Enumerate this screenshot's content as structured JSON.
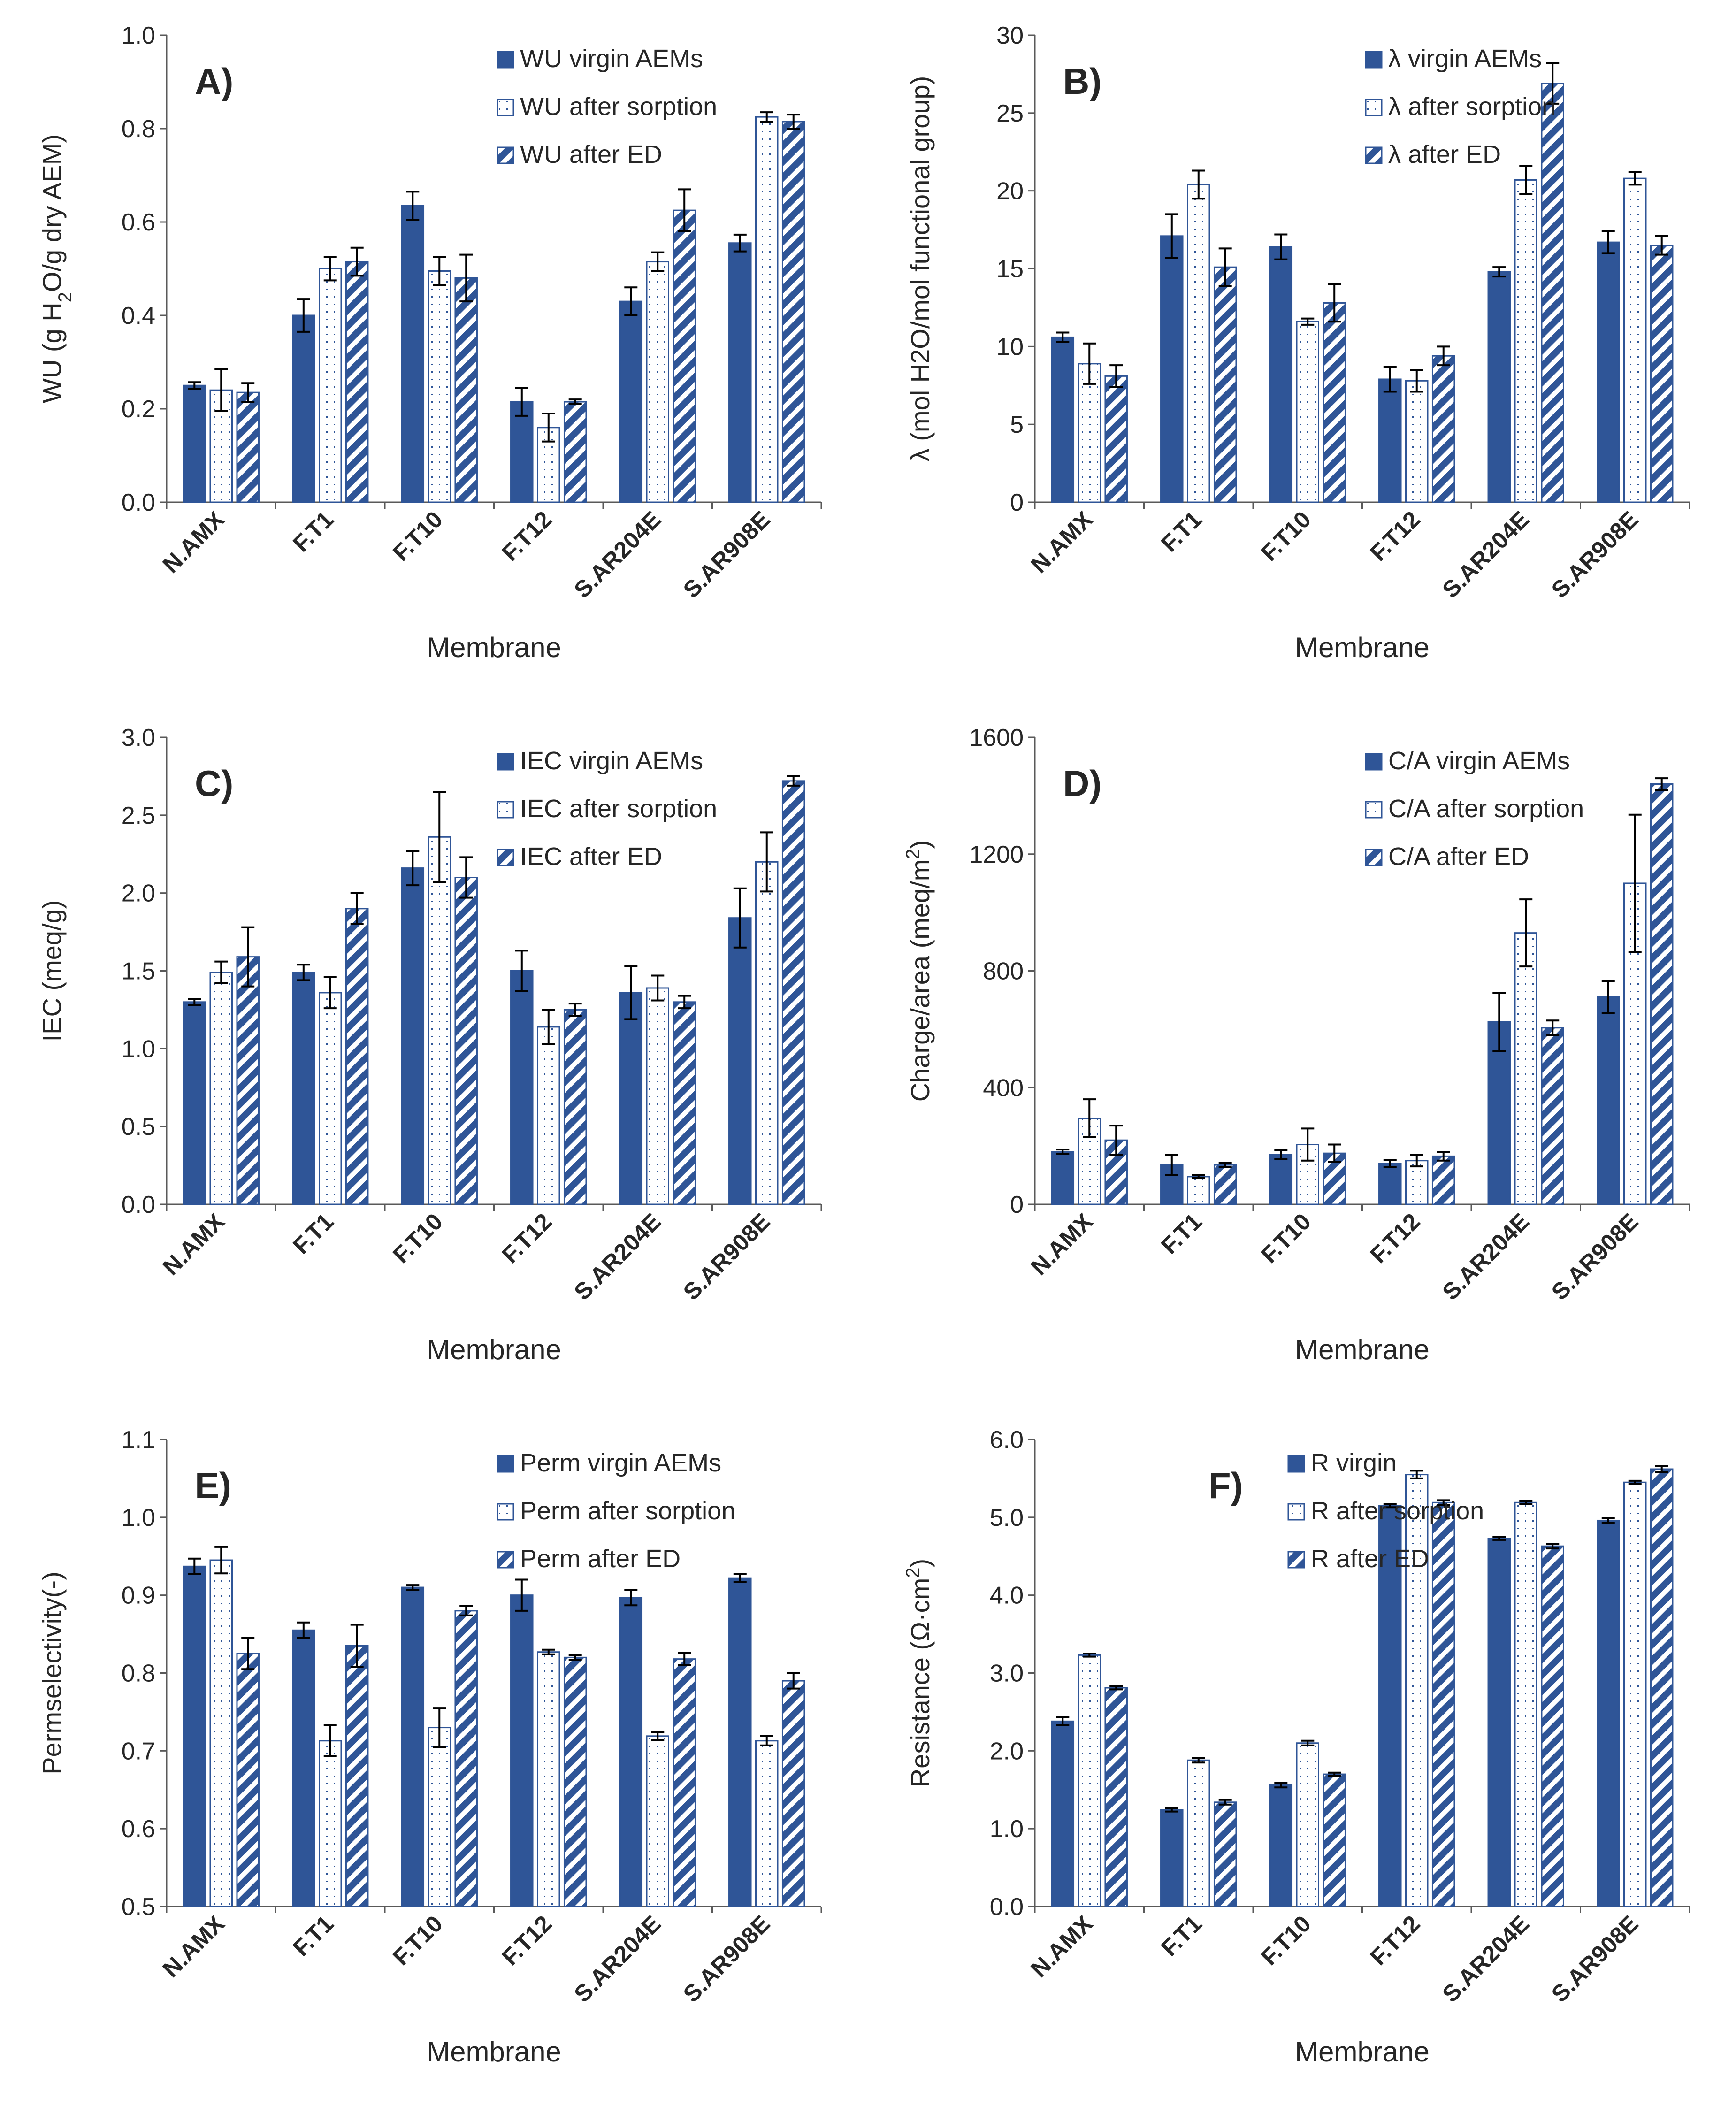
{
  "colors": {
    "bar_fill": "#2F5597",
    "bar_stroke": "#2F5597",
    "axis": "#595959",
    "error_bar": "#000000"
  },
  "chart_data": [
    {
      "type": "bar",
      "letter": "A)",
      "categories": [
        "N.AMX",
        "F.T1",
        "F.T10",
        "F.T12",
        "S.AR204E",
        "S.AR908E"
      ],
      "xlabel": "Membrane",
      "ylabel_parts": [
        "WU (g H",
        "2",
        "O/g dry AEM)"
      ],
      "ylim": [
        0,
        1.0
      ],
      "yticks": [
        0,
        0.2,
        0.4,
        0.6,
        0.8,
        1.0
      ],
      "tick_decimals": 1,
      "legend_position": "top-right",
      "series": [
        {
          "name": "WU virgin AEMs",
          "pattern": "solid",
          "values": [
            0.25,
            0.4,
            0.635,
            0.215,
            0.43,
            0.555
          ],
          "errors": [
            0.007,
            0.035,
            0.03,
            0.03,
            0.03,
            0.018
          ]
        },
        {
          "name": "WU after sorption",
          "pattern": "dots",
          "values": [
            0.24,
            0.5,
            0.495,
            0.16,
            0.515,
            0.825
          ],
          "errors": [
            0.045,
            0.025,
            0.03,
            0.03,
            0.02,
            0.01
          ]
        },
        {
          "name": "WU after ED",
          "pattern": "diag",
          "values": [
            0.235,
            0.515,
            0.48,
            0.215,
            0.625,
            0.815
          ],
          "errors": [
            0.02,
            0.03,
            0.05,
            0.005,
            0.045,
            0.015
          ]
        }
      ]
    },
    {
      "type": "bar",
      "letter": "B)",
      "categories": [
        "N.AMX",
        "F.T1",
        "F.T10",
        "F.T12",
        "S.AR204E",
        "S.AR908E"
      ],
      "xlabel": "Membrane",
      "ylabel_parts": [
        "λ (mol H2O/mol functional group)"
      ],
      "ylim": [
        0,
        30
      ],
      "yticks": [
        0,
        5,
        10,
        15,
        20,
        25,
        30
      ],
      "tick_decimals": 0,
      "legend_position": "top-right",
      "series": [
        {
          "name": "λ virgin AEMs",
          "pattern": "solid",
          "values": [
            10.6,
            17.1,
            16.4,
            7.9,
            14.8,
            16.7
          ],
          "errors": [
            0.3,
            1.4,
            0.8,
            0.8,
            0.3,
            0.7
          ]
        },
        {
          "name": "λ after sorption",
          "pattern": "dots",
          "values": [
            8.9,
            20.4,
            11.6,
            7.8,
            20.7,
            20.8
          ],
          "errors": [
            1.3,
            0.9,
            0.2,
            0.7,
            0.9,
            0.4
          ]
        },
        {
          "name": "λ after ED",
          "pattern": "diag",
          "values": [
            8.1,
            15.1,
            12.8,
            9.4,
            26.9,
            16.5
          ],
          "errors": [
            0.7,
            1.2,
            1.2,
            0.6,
            1.3,
            0.6
          ]
        }
      ]
    },
    {
      "type": "bar",
      "letter": "C)",
      "categories": [
        "N.AMX",
        "F.T1",
        "F.T10",
        "F.T12",
        "S.AR204E",
        "S.AR908E"
      ],
      "xlabel": "Membrane",
      "ylabel_parts": [
        "IEC (meq/g)"
      ],
      "ylim": [
        0,
        3.0
      ],
      "yticks": [
        0,
        0.5,
        1.0,
        1.5,
        2.0,
        2.5,
        3.0
      ],
      "tick_decimals": 1,
      "legend_position": "top-right",
      "series": [
        {
          "name": "IEC virgin AEMs",
          "pattern": "solid",
          "values": [
            1.3,
            1.49,
            2.16,
            1.5,
            1.36,
            1.84
          ],
          "errors": [
            0.02,
            0.05,
            0.11,
            0.13,
            0.17,
            0.19
          ]
        },
        {
          "name": "IEC after sorption",
          "pattern": "dots",
          "values": [
            1.49,
            1.36,
            2.36,
            1.14,
            1.39,
            2.2
          ],
          "errors": [
            0.07,
            0.1,
            0.29,
            0.11,
            0.08,
            0.19
          ]
        },
        {
          "name": "IEC after ED",
          "pattern": "diag",
          "values": [
            1.59,
            1.9,
            2.1,
            1.25,
            1.3,
            2.72
          ],
          "errors": [
            0.19,
            0.1,
            0.13,
            0.04,
            0.04,
            0.03
          ]
        }
      ]
    },
    {
      "type": "bar",
      "letter": "D)",
      "categories": [
        "N.AMX",
        "F.T1",
        "F.T10",
        "F.T12",
        "S.AR204E",
        "S.AR908E"
      ],
      "xlabel": "Membrane",
      "ylabel_parts": [
        "Charge/area (meq/m",
        "2",
        ")"
      ],
      "ylim": [
        0,
        1600
      ],
      "yticks": [
        0,
        400,
        800,
        1200,
        1600
      ],
      "tick_decimals": 0,
      "legend_position": "top-right",
      "series": [
        {
          "name": "C/A virgin AEMs",
          "pattern": "solid",
          "values": [
            180,
            135,
            170,
            140,
            625,
            710
          ],
          "errors": [
            8,
            35,
            15,
            12,
            100,
            55
          ]
        },
        {
          "name": "C/A after sorption",
          "pattern": "dots",
          "values": [
            295,
            95,
            205,
            150,
            930,
            1100
          ],
          "errors": [
            65,
            5,
            55,
            20,
            115,
            235
          ]
        },
        {
          "name": "C/A after ED",
          "pattern": "diag",
          "values": [
            220,
            135,
            175,
            165,
            605,
            1440
          ],
          "errors": [
            50,
            8,
            30,
            15,
            25,
            20
          ]
        }
      ]
    },
    {
      "type": "bar",
      "letter": "E)",
      "categories": [
        "N.AMX",
        "F.T1",
        "F.T10",
        "F.T12",
        "S.AR204E",
        "S.AR908E"
      ],
      "xlabel": "Membrane",
      "ylabel_parts": [
        "Permselectivity(-)"
      ],
      "ylim": [
        0.5,
        1.1
      ],
      "yticks": [
        0.5,
        0.6,
        0.7,
        0.8,
        0.9,
        1.0,
        1.1
      ],
      "tick_decimals": 1,
      "legend_position": "top-right",
      "series": [
        {
          "name": "Perm virgin AEMs",
          "pattern": "solid",
          "values": [
            0.937,
            0.855,
            0.91,
            0.9,
            0.897,
            0.922
          ],
          "errors": [
            0.01,
            0.01,
            0.003,
            0.02,
            0.01,
            0.005
          ]
        },
        {
          "name": "Perm after sorption",
          "pattern": "dots",
          "values": [
            0.945,
            0.713,
            0.73,
            0.827,
            0.719,
            0.713
          ],
          "errors": [
            0.017,
            0.02,
            0.025,
            0.003,
            0.005,
            0.006
          ]
        },
        {
          "name": "Perm after ED",
          "pattern": "diag",
          "values": [
            0.825,
            0.835,
            0.88,
            0.82,
            0.818,
            0.79
          ],
          "errors": [
            0.02,
            0.027,
            0.006,
            0.003,
            0.008,
            0.01
          ]
        }
      ]
    },
    {
      "type": "bar",
      "letter": "F)",
      "categories": [
        "N.AMX",
        "F.T1",
        "F.T10",
        "F.T12",
        "S.AR204E",
        "S.AR908E"
      ],
      "xlabel": "Membrane",
      "ylabel_parts": [
        "Resistance (Ω·cm",
        "2",
        ")"
      ],
      "ylim": [
        0,
        6.0
      ],
      "yticks": [
        0,
        1.0,
        2.0,
        3.0,
        4.0,
        5.0,
        6.0
      ],
      "tick_decimals": 1,
      "legend_position": "top-left",
      "series": [
        {
          "name": "R virgin",
          "pattern": "solid",
          "values": [
            2.38,
            1.24,
            1.56,
            5.15,
            4.73,
            4.96
          ],
          "errors": [
            0.05,
            0.02,
            0.03,
            0.02,
            0.02,
            0.03
          ]
        },
        {
          "name": "R after sorption",
          "pattern": "dots",
          "values": [
            3.23,
            1.88,
            2.1,
            5.55,
            5.19,
            5.45
          ],
          "errors": [
            0.02,
            0.03,
            0.03,
            0.05,
            0.02,
            0.02
          ]
        },
        {
          "name": "R after ED",
          "pattern": "diag",
          "values": [
            2.81,
            1.34,
            1.7,
            5.19,
            4.63,
            5.62
          ],
          "errors": [
            0.02,
            0.03,
            0.02,
            0.03,
            0.03,
            0.04
          ]
        }
      ]
    }
  ]
}
